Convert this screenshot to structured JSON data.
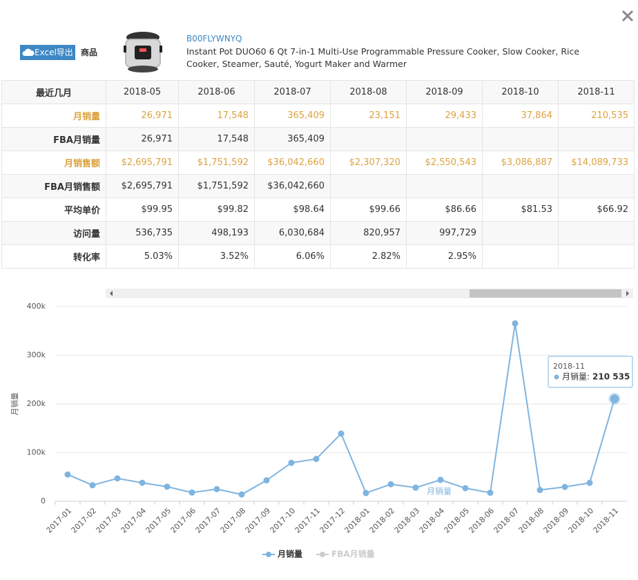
{
  "header": {
    "export_button": "Excel导出",
    "product_label": "商品",
    "asin": "B00FLYWNYQ",
    "title": "Instant Pot DUO60 6 Qt 7-in-1 Multi-Use Programmable Pressure Cooker, Slow Cooker, Rice Cooker, Steamer, Sauté, Yogurt Maker and Warmer"
  },
  "table": {
    "header": [
      "最近几月",
      "2018-05",
      "2018-06",
      "2018-07",
      "2018-08",
      "2018-09",
      "2018-10",
      "2018-11"
    ],
    "rows": [
      [
        "月销量",
        "26,971",
        "17,548",
        "365,409",
        "23,151",
        "29,433",
        "37,864",
        "210,535"
      ],
      [
        "FBA月销量",
        "26,971",
        "17,548",
        "365,409",
        null,
        null,
        null,
        null
      ],
      [
        "月销售额",
        "$2,695,791",
        "$1,751,592",
        "$36,042,660",
        "$2,307,320",
        "$2,550,543",
        "$3,086,887",
        "$14,089,733"
      ],
      [
        "FBA月销售额",
        "$2,695,791",
        "$1,751,592",
        "$36,042,660",
        null,
        null,
        null,
        null
      ],
      [
        "平均单价",
        "$99.95",
        "$99.82",
        "$98.64",
        "$99.66",
        "$86.66",
        "$81.53",
        "$66.92"
      ],
      [
        "访问量",
        "536,735",
        "498,193",
        "6,030,684",
        "820,957",
        "997,729",
        null,
        null
      ],
      [
        "转化率",
        "5.03%",
        "3.52%",
        "6.06%",
        "2.82%",
        "2.95%",
        null,
        null
      ]
    ],
    "highlight_rows": [
      0,
      2
    ],
    "highlight_color": "#dca23e"
  },
  "chart_data": {
    "type": "line",
    "y_axis_label": "月销量",
    "categories": [
      "2017-01",
      "2017-02",
      "2017-03",
      "2017-04",
      "2017-05",
      "2017-06",
      "2017-07",
      "2017-08",
      "2017-09",
      "2017-10",
      "2017-11",
      "2017-12",
      "2018-01",
      "2018-02",
      "2018-03",
      "2018-04",
      "2018-05",
      "2018-06",
      "2018-07",
      "2018-08",
      "2018-09",
      "2018-10",
      "2018-11"
    ],
    "series": [
      {
        "name": "月销量",
        "color": "#7fb4df",
        "values": [
          55000,
          33000,
          47000,
          38000,
          30000,
          18000,
          25000,
          14000,
          43000,
          79000,
          87000,
          139000,
          17000,
          35000,
          28000,
          44000,
          26971,
          17548,
          365409,
          23151,
          29433,
          37864,
          210535
        ]
      },
      {
        "name": "FBA月销量",
        "color": "#cccccc",
        "hidden": true
      }
    ],
    "ylim": [
      0,
      400000
    ],
    "yticks": [
      0,
      {
        "value": 100000,
        "label": "100k"
      },
      {
        "value": 200000,
        "label": "200k"
      },
      {
        "value": 300000,
        "label": "300k"
      },
      {
        "value": 400000,
        "label": "400k"
      }
    ],
    "grid": true,
    "legend": "bottom",
    "annotation": "月销量",
    "tooltip": {
      "index": 22,
      "x_label": "2018-11",
      "series": "月销量:",
      "value_label": "210 535"
    }
  }
}
